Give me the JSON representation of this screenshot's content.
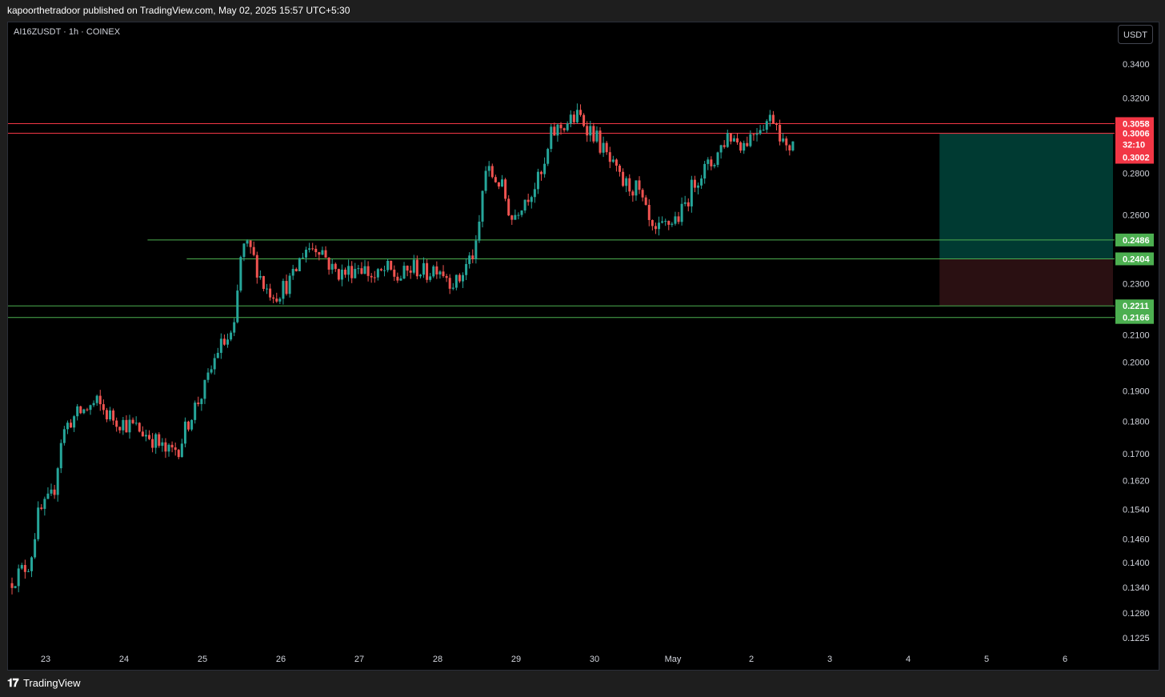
{
  "header": {
    "published_text": "kapoorthetradoor published on TradingView.com, May 02, 2025 15:57 UTC+5:30"
  },
  "symbol": {
    "info": "AI16ZUSDT · 1h · COINEX",
    "currency_button": "USDT"
  },
  "footer": {
    "brand": "TradingView",
    "logo_glyph": "𝟏𝟕"
  },
  "colors": {
    "up": "#26a69a",
    "down": "#ef5350",
    "red_line": "#f23645",
    "green_line": "#4caf50",
    "profit_zone": "#003a32",
    "loss_zone": "#2a1012",
    "background": "#000000"
  },
  "chart_data": {
    "type": "candlestick",
    "symbol": "AI16ZUSDT",
    "interval": "1h",
    "exchange": "COINEX",
    "y_scale": "log",
    "ylim": [
      0.119,
      0.36
    ],
    "grid": false,
    "y_ticks": [
      "0.3400",
      "0.3200",
      "0.2800",
      "0.2600",
      "0.2300",
      "0.2100",
      "0.2000",
      "0.1900",
      "0.1800",
      "0.1700",
      "0.1620",
      "0.1540",
      "0.1460",
      "0.1400",
      "0.1340",
      "0.1280",
      "0.1225"
    ],
    "x_ticks": [
      {
        "label": "23",
        "day": 0
      },
      {
        "label": "24",
        "day": 1
      },
      {
        "label": "25",
        "day": 2
      },
      {
        "label": "26",
        "day": 3
      },
      {
        "label": "27",
        "day": 4
      },
      {
        "label": "28",
        "day": 5
      },
      {
        "label": "29",
        "day": 6
      },
      {
        "label": "30",
        "day": 7
      },
      {
        "label": "May",
        "day": 8
      },
      {
        "label": "2",
        "day": 9
      },
      {
        "label": "3",
        "day": 10
      },
      {
        "label": "4",
        "day": 11
      },
      {
        "label": "5",
        "day": 12
      },
      {
        "label": "6",
        "day": 13
      }
    ],
    "horizontal_lines": [
      {
        "price": 0.3058,
        "label": "0.3058",
        "color": "red",
        "start_day": -0.5
      },
      {
        "price": 0.3006,
        "label": "0.3006",
        "color": "red",
        "start_day": -0.5
      },
      {
        "price": 0.2486,
        "label": "0.2486",
        "color": "green",
        "start_day": 1.3
      },
      {
        "price": 0.2404,
        "label": "0.2404",
        "color": "green",
        "start_day": 1.8
      },
      {
        "price": 0.2211,
        "label": "0.2211",
        "color": "green",
        "start_day": -0.5
      },
      {
        "price": 0.2166,
        "label": "0.2166",
        "color": "green",
        "start_day": -0.5
      }
    ],
    "last_price": {
      "price": "0.3006",
      "countdown": "32:10",
      "sub_price": "0.3002"
    },
    "position": {
      "entry": 0.2404,
      "target": 0.3006,
      "stop": 0.2211,
      "start_day": 11.4
    },
    "key_points": [
      [
        -0.47,
        0.135
      ],
      [
        -0.2,
        0.14
      ],
      [
        -0.1,
        0.152
      ],
      [
        0.1,
        0.158
      ],
      [
        0.2,
        0.175
      ],
      [
        0.3,
        0.18
      ],
      [
        0.45,
        0.183
      ],
      [
        0.65,
        0.186
      ],
      [
        0.8,
        0.182
      ],
      [
        0.95,
        0.18
      ],
      [
        1.15,
        0.178
      ],
      [
        1.35,
        0.175
      ],
      [
        1.55,
        0.17
      ],
      [
        1.7,
        0.172
      ],
      [
        1.85,
        0.182
      ],
      [
        2.05,
        0.192
      ],
      [
        2.2,
        0.205
      ],
      [
        2.4,
        0.21
      ],
      [
        2.5,
        0.245
      ],
      [
        2.6,
        0.245
      ],
      [
        2.8,
        0.228
      ],
      [
        2.95,
        0.226
      ],
      [
        3.15,
        0.232
      ],
      [
        3.3,
        0.245
      ],
      [
        3.5,
        0.246
      ],
      [
        3.65,
        0.236
      ],
      [
        3.8,
        0.234
      ],
      [
        4.0,
        0.238
      ],
      [
        4.2,
        0.232
      ],
      [
        4.35,
        0.236
      ],
      [
        4.5,
        0.232
      ],
      [
        4.7,
        0.237
      ],
      [
        4.85,
        0.234
      ],
      [
        5.0,
        0.238
      ],
      [
        5.15,
        0.232
      ],
      [
        5.25,
        0.23
      ],
      [
        5.4,
        0.24
      ],
      [
        5.5,
        0.245
      ],
      [
        5.6,
        0.282
      ],
      [
        5.8,
        0.275
      ],
      [
        5.95,
        0.258
      ],
      [
        6.05,
        0.265
      ],
      [
        6.2,
        0.272
      ],
      [
        6.35,
        0.28
      ],
      [
        6.45,
        0.3
      ],
      [
        6.6,
        0.305
      ],
      [
        6.8,
        0.31
      ],
      [
        7.0,
        0.3
      ],
      [
        7.2,
        0.285
      ],
      [
        7.35,
        0.275
      ],
      [
        7.55,
        0.272
      ],
      [
        7.75,
        0.25
      ],
      [
        7.9,
        0.255
      ],
      [
        8.1,
        0.26
      ],
      [
        8.3,
        0.278
      ],
      [
        8.5,
        0.285
      ],
      [
        8.7,
        0.3
      ],
      [
        8.9,
        0.295
      ],
      [
        9.1,
        0.305
      ],
      [
        9.3,
        0.31
      ],
      [
        9.45,
        0.29
      ],
      [
        9.55,
        0.3
      ]
    ]
  }
}
